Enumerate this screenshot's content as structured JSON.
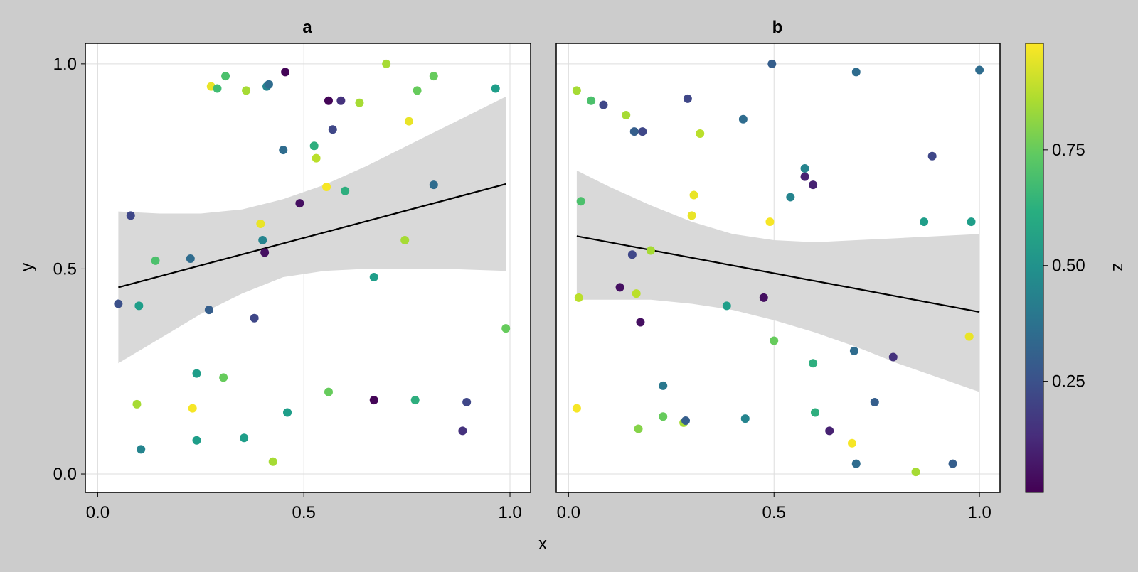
{
  "chart_data": {
    "type": "scatter",
    "xlabel": "x",
    "ylabel": "y",
    "xlim": [
      -0.03,
      1.05
    ],
    "ylim": [
      -0.045,
      1.05
    ],
    "xticks": [
      0.0,
      0.5,
      1.0
    ],
    "xtick_labels": [
      "0.0",
      "0.5",
      "1.0"
    ],
    "yticks": [
      0.0,
      0.5,
      1.0
    ],
    "ytick_labels": [
      "0.0",
      "0.5",
      "1.0"
    ],
    "grid": true,
    "fit_band_color": "#d9d9d9",
    "fit_line_color": "#000000",
    "colormap": "viridis",
    "colorbar": {
      "label": "z",
      "range": [
        0.01,
        0.98
      ],
      "ticks": [
        0.25,
        0.5,
        0.75
      ],
      "tick_labels": [
        "0.25",
        "0.50",
        "0.75"
      ]
    },
    "panels": [
      {
        "title": "a",
        "fit": {
          "x": [
            0.05,
            0.99
          ],
          "y": [
            0.455,
            0.707
          ]
        },
        "band": {
          "x": [
            0.05,
            0.15,
            0.25,
            0.35,
            0.45,
            0.55,
            0.65,
            0.75,
            0.85,
            0.99
          ],
          "lower": [
            0.27,
            0.33,
            0.39,
            0.44,
            0.48,
            0.495,
            0.5,
            0.5,
            0.5,
            0.495
          ],
          "upper": [
            0.64,
            0.635,
            0.635,
            0.645,
            0.67,
            0.705,
            0.75,
            0.8,
            0.85,
            0.92
          ]
        },
        "points": [
          {
            "x": 0.05,
            "y": 0.415,
            "z": 0.25
          },
          {
            "x": 0.08,
            "y": 0.63,
            "z": 0.22
          },
          {
            "x": 0.095,
            "y": 0.17,
            "z": 0.85
          },
          {
            "x": 0.1,
            "y": 0.41,
            "z": 0.55
          },
          {
            "x": 0.105,
            "y": 0.06,
            "z": 0.45
          },
          {
            "x": 0.14,
            "y": 0.52,
            "z": 0.7
          },
          {
            "x": 0.225,
            "y": 0.525,
            "z": 0.35
          },
          {
            "x": 0.23,
            "y": 0.16,
            "z": 0.97
          },
          {
            "x": 0.24,
            "y": 0.245,
            "z": 0.55
          },
          {
            "x": 0.24,
            "y": 0.082,
            "z": 0.55
          },
          {
            "x": 0.27,
            "y": 0.4,
            "z": 0.3
          },
          {
            "x": 0.275,
            "y": 0.945,
            "z": 0.95
          },
          {
            "x": 0.29,
            "y": 0.94,
            "z": 0.68
          },
          {
            "x": 0.305,
            "y": 0.235,
            "z": 0.75
          },
          {
            "x": 0.31,
            "y": 0.97,
            "z": 0.7
          },
          {
            "x": 0.355,
            "y": 0.088,
            "z": 0.55
          },
          {
            "x": 0.36,
            "y": 0.935,
            "z": 0.85
          },
          {
            "x": 0.38,
            "y": 0.38,
            "z": 0.22
          },
          {
            "x": 0.395,
            "y": 0.61,
            "z": 0.95
          },
          {
            "x": 0.4,
            "y": 0.57,
            "z": 0.45
          },
          {
            "x": 0.405,
            "y": 0.54,
            "z": 0.05
          },
          {
            "x": 0.41,
            "y": 0.945,
            "z": 0.45
          },
          {
            "x": 0.415,
            "y": 0.95,
            "z": 0.35
          },
          {
            "x": 0.425,
            "y": 0.03,
            "z": 0.85
          },
          {
            "x": 0.45,
            "y": 0.79,
            "z": 0.35
          },
          {
            "x": 0.455,
            "y": 0.98,
            "z": 0.02
          },
          {
            "x": 0.46,
            "y": 0.15,
            "z": 0.55
          },
          {
            "x": 0.49,
            "y": 0.66,
            "z": 0.05
          },
          {
            "x": 0.525,
            "y": 0.8,
            "z": 0.62
          },
          {
            "x": 0.53,
            "y": 0.77,
            "z": 0.88
          },
          {
            "x": 0.555,
            "y": 0.7,
            "z": 0.97
          },
          {
            "x": 0.56,
            "y": 0.91,
            "z": 0.02
          },
          {
            "x": 0.56,
            "y": 0.2,
            "z": 0.75
          },
          {
            "x": 0.57,
            "y": 0.84,
            "z": 0.22
          },
          {
            "x": 0.59,
            "y": 0.91,
            "z": 0.15
          },
          {
            "x": 0.6,
            "y": 0.69,
            "z": 0.62
          },
          {
            "x": 0.635,
            "y": 0.905,
            "z": 0.85
          },
          {
            "x": 0.67,
            "y": 0.48,
            "z": 0.55
          },
          {
            "x": 0.67,
            "y": 0.18,
            "z": 0.02
          },
          {
            "x": 0.7,
            "y": 1.0,
            "z": 0.85
          },
          {
            "x": 0.745,
            "y": 0.57,
            "z": 0.85
          },
          {
            "x": 0.755,
            "y": 0.86,
            "z": 0.95
          },
          {
            "x": 0.77,
            "y": 0.18,
            "z": 0.62
          },
          {
            "x": 0.775,
            "y": 0.935,
            "z": 0.75
          },
          {
            "x": 0.815,
            "y": 0.97,
            "z": 0.75
          },
          {
            "x": 0.815,
            "y": 0.705,
            "z": 0.35
          },
          {
            "x": 0.885,
            "y": 0.105,
            "z": 0.15
          },
          {
            "x": 0.895,
            "y": 0.175,
            "z": 0.22
          },
          {
            "x": 0.965,
            "y": 0.94,
            "z": 0.55
          },
          {
            "x": 0.99,
            "y": 0.355,
            "z": 0.75
          }
        ]
      },
      {
        "title": "b",
        "fit": {
          "x": [
            0.02,
            1.0
          ],
          "y": [
            0.58,
            0.395
          ]
        },
        "band": {
          "x": [
            0.02,
            0.1,
            0.2,
            0.3,
            0.4,
            0.5,
            0.6,
            0.7,
            0.8,
            0.9,
            1.0
          ],
          "lower": [
            0.425,
            0.425,
            0.425,
            0.415,
            0.4,
            0.375,
            0.345,
            0.31,
            0.27,
            0.235,
            0.2
          ],
          "upper": [
            0.74,
            0.7,
            0.655,
            0.615,
            0.585,
            0.57,
            0.565,
            0.57,
            0.575,
            0.58,
            0.585
          ]
        },
        "points": [
          {
            "x": 0.02,
            "y": 0.935,
            "z": 0.85
          },
          {
            "x": 0.02,
            "y": 0.16,
            "z": 0.97
          },
          {
            "x": 0.025,
            "y": 0.43,
            "z": 0.88
          },
          {
            "x": 0.03,
            "y": 0.665,
            "z": 0.7
          },
          {
            "x": 0.055,
            "y": 0.91,
            "z": 0.7
          },
          {
            "x": 0.085,
            "y": 0.9,
            "z": 0.22
          },
          {
            "x": 0.125,
            "y": 0.455,
            "z": 0.05
          },
          {
            "x": 0.14,
            "y": 0.875,
            "z": 0.85
          },
          {
            "x": 0.155,
            "y": 0.535,
            "z": 0.22
          },
          {
            "x": 0.16,
            "y": 0.835,
            "z": 0.3
          },
          {
            "x": 0.165,
            "y": 0.44,
            "z": 0.88
          },
          {
            "x": 0.17,
            "y": 0.11,
            "z": 0.8
          },
          {
            "x": 0.175,
            "y": 0.37,
            "z": 0.05
          },
          {
            "x": 0.18,
            "y": 0.835,
            "z": 0.22
          },
          {
            "x": 0.2,
            "y": 0.545,
            "z": 0.85
          },
          {
            "x": 0.23,
            "y": 0.215,
            "z": 0.4
          },
          {
            "x": 0.23,
            "y": 0.14,
            "z": 0.75
          },
          {
            "x": 0.28,
            "y": 0.125,
            "z": 0.85
          },
          {
            "x": 0.285,
            "y": 0.13,
            "z": 0.3
          },
          {
            "x": 0.29,
            "y": 0.915,
            "z": 0.22
          },
          {
            "x": 0.3,
            "y": 0.63,
            "z": 0.95
          },
          {
            "x": 0.305,
            "y": 0.68,
            "z": 0.95
          },
          {
            "x": 0.32,
            "y": 0.83,
            "z": 0.88
          },
          {
            "x": 0.385,
            "y": 0.41,
            "z": 0.55
          },
          {
            "x": 0.425,
            "y": 0.865,
            "z": 0.35
          },
          {
            "x": 0.43,
            "y": 0.135,
            "z": 0.45
          },
          {
            "x": 0.475,
            "y": 0.43,
            "z": 0.05
          },
          {
            "x": 0.49,
            "y": 0.615,
            "z": 0.97
          },
          {
            "x": 0.495,
            "y": 1.0,
            "z": 0.3
          },
          {
            "x": 0.5,
            "y": 0.325,
            "z": 0.75
          },
          {
            "x": 0.54,
            "y": 0.675,
            "z": 0.45
          },
          {
            "x": 0.575,
            "y": 0.745,
            "z": 0.45
          },
          {
            "x": 0.575,
            "y": 0.725,
            "z": 0.1
          },
          {
            "x": 0.595,
            "y": 0.705,
            "z": 0.1
          },
          {
            "x": 0.595,
            "y": 0.27,
            "z": 0.62
          },
          {
            "x": 0.6,
            "y": 0.15,
            "z": 0.62
          },
          {
            "x": 0.635,
            "y": 0.105,
            "z": 0.1
          },
          {
            "x": 0.69,
            "y": 0.075,
            "z": 0.97
          },
          {
            "x": 0.695,
            "y": 0.3,
            "z": 0.35
          },
          {
            "x": 0.7,
            "y": 0.025,
            "z": 0.35
          },
          {
            "x": 0.7,
            "y": 0.98,
            "z": 0.35
          },
          {
            "x": 0.745,
            "y": 0.175,
            "z": 0.3
          },
          {
            "x": 0.79,
            "y": 0.285,
            "z": 0.15
          },
          {
            "x": 0.845,
            "y": 0.005,
            "z": 0.85
          },
          {
            "x": 0.865,
            "y": 0.615,
            "z": 0.55
          },
          {
            "x": 0.885,
            "y": 0.775,
            "z": 0.22
          },
          {
            "x": 0.935,
            "y": 0.025,
            "z": 0.3
          },
          {
            "x": 0.975,
            "y": 0.335,
            "z": 0.95
          },
          {
            "x": 0.98,
            "y": 0.615,
            "z": 0.55
          },
          {
            "x": 1.0,
            "y": 0.985,
            "z": 0.35
          }
        ]
      }
    ]
  }
}
